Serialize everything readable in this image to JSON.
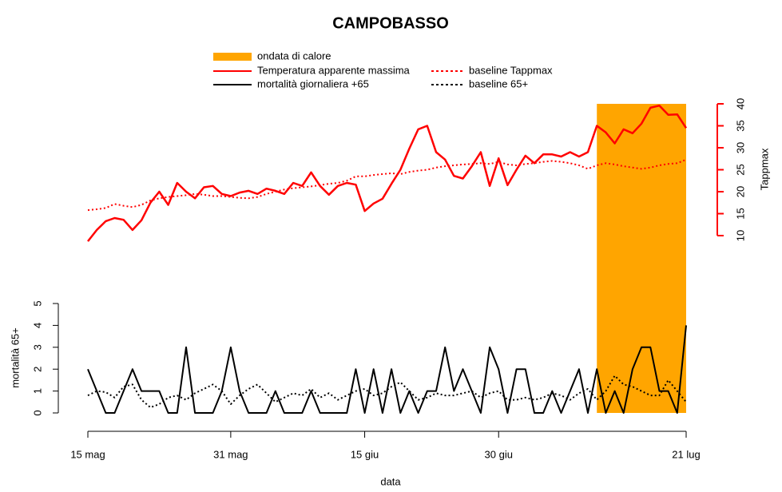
{
  "chart_data": {
    "type": "line",
    "title": "CAMPOBASSO",
    "xlabel": "data",
    "ylabel": "mortalità 65+",
    "y2label": "Tappmax",
    "categories": [
      "15 mag",
      null,
      null,
      null,
      null,
      null,
      null,
      null,
      null,
      null,
      null,
      null,
      null,
      null,
      null,
      null,
      "31 mag",
      null,
      null,
      null,
      null,
      null,
      null,
      null,
      null,
      null,
      null,
      null,
      null,
      null,
      null,
      "15 giu",
      null,
      null,
      null,
      null,
      null,
      null,
      null,
      null,
      null,
      null,
      null,
      null,
      null,
      null,
      "30 giu",
      null,
      null,
      null,
      null,
      null,
      null,
      null,
      null,
      null,
      null,
      null,
      null,
      null,
      null,
      null,
      null,
      null,
      null,
      null,
      null,
      "21 lug"
    ],
    "ylim": [
      0,
      5
    ],
    "yticks": [
      0,
      1,
      2,
      3,
      4,
      5
    ],
    "y2lim": [
      10,
      40
    ],
    "y2ticks": [
      10,
      15,
      20,
      25,
      30,
      35,
      40
    ],
    "y2color": "#ff0000",
    "highlight": {
      "name": "ondata di calore",
      "color": "#ffa500",
      "from": 57,
      "to": 67
    },
    "series": [
      {
        "name": "Temperatura apparente massima",
        "color": "#ff0000",
        "axis": "y2",
        "linestyle": "solid",
        "values": [
          8.7,
          11.3,
          13.3,
          14,
          13.6,
          11.3,
          13.5,
          17.5,
          20,
          17,
          22,
          20,
          18.5,
          21,
          21.3,
          19.5,
          19,
          19.8,
          20.2,
          19.5,
          20.7,
          20.2,
          19.5,
          22,
          21.3,
          24.4,
          21.3,
          19.3,
          21.3,
          22,
          21.6,
          15.6,
          17.3,
          18.4,
          21.8,
          25,
          29.8,
          34.2,
          35,
          29,
          27.3,
          23.6,
          23,
          25.8,
          29,
          21.3,
          27.6,
          21.5,
          25,
          28.2,
          26.5,
          28.5,
          28.5,
          28,
          29,
          28,
          29,
          35,
          33.5,
          31,
          34.2,
          33.3,
          35.5,
          39.1,
          39.6,
          37.5,
          37.6,
          34.5
        ]
      },
      {
        "name": "baseline Tappmax",
        "color": "#ff0000",
        "axis": "y2",
        "linestyle": "dotted",
        "values": [
          15.8,
          16,
          16.3,
          17.2,
          16.8,
          16.5,
          17,
          18,
          18.5,
          18.8,
          19,
          19.2,
          19.5,
          19.3,
          19,
          19,
          18.8,
          18.6,
          18.5,
          18.8,
          19.5,
          20,
          20.5,
          20.8,
          21,
          21.2,
          21.5,
          21.8,
          22,
          22.5,
          23.5,
          23.5,
          23.8,
          24,
          24.2,
          24,
          24.5,
          24.8,
          25,
          25.5,
          25.8,
          26,
          26.2,
          26.3,
          26.5,
          26.3,
          26.8,
          26.2,
          26,
          26.3,
          26.5,
          26.8,
          27,
          26.8,
          26.5,
          26,
          25.2,
          26,
          26.5,
          26.2,
          25.8,
          25.5,
          25.2,
          25.5,
          26,
          26.3,
          26.5,
          27.3
        ]
      },
      {
        "name": "mortalità giornaliera +65",
        "color": "#000000",
        "axis": "y",
        "linestyle": "solid",
        "values": [
          2,
          1,
          0,
          0,
          1,
          2,
          1,
          1,
          1,
          0,
          0,
          3,
          0,
          0,
          0,
          1,
          3,
          1,
          0,
          0,
          0,
          1,
          0,
          0,
          0,
          1,
          0,
          0,
          0,
          0,
          2,
          0,
          2,
          0,
          2,
          0,
          1,
          0,
          1,
          1,
          3,
          1,
          2,
          1,
          0,
          3,
          2,
          0,
          2,
          2,
          0,
          0,
          1,
          0,
          1,
          2,
          0,
          2,
          0,
          1,
          0,
          2,
          3,
          3,
          1,
          1,
          0,
          4
        ]
      },
      {
        "name": "baseline 65+",
        "color": "#000000",
        "axis": "y",
        "linestyle": "dotted",
        "values": [
          0.8,
          1.0,
          0.95,
          0.7,
          1.2,
          1.3,
          0.6,
          0.25,
          0.4,
          0.7,
          0.8,
          0.6,
          0.9,
          1.1,
          1.3,
          1.0,
          0.4,
          0.8,
          1.1,
          1.3,
          0.9,
          0.5,
          0.7,
          0.9,
          0.8,
          1.1,
          0.7,
          0.9,
          0.6,
          0.8,
          1.0,
          1.1,
          0.8,
          0.9,
          1.2,
          1.4,
          1.0,
          0.6,
          0.7,
          0.9,
          0.8,
          0.8,
          0.9,
          1.0,
          0.7,
          0.9,
          1.0,
          0.6,
          0.6,
          0.7,
          0.6,
          0.7,
          0.9,
          0.8,
          0.6,
          0.9,
          1.1,
          0.6,
          1.0,
          1.7,
          1.3,
          1.2,
          1.0,
          0.8,
          0.8,
          1.5,
          1.0,
          0.5
        ]
      }
    ]
  }
}
